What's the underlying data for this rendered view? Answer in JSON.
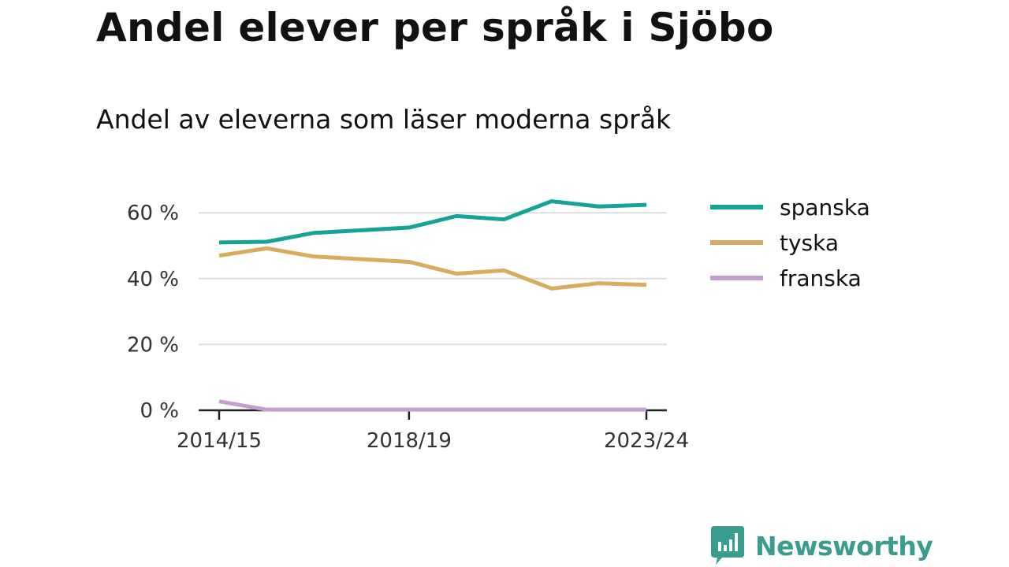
{
  "title": "Andel elever per språk i Sjöbo",
  "subtitle": "Andel av eleverna som läser moderna språk",
  "brand": {
    "name": "Newsworthy",
    "color": "#3a9c8f",
    "icon": "bar-chart-speech-bubble-icon"
  },
  "colors": {
    "gridline": "#dddddd",
    "axis": "#222222"
  },
  "chart_data": {
    "type": "line",
    "title": "Andel av eleverna som läser moderna språk",
    "x": [
      "2014/15",
      "2015/16",
      "2016/17",
      "2017/18",
      "2018/19",
      "2019/20",
      "2020/21",
      "2021/22",
      "2022/23",
      "2023/24"
    ],
    "x_tick_labels": [
      "2014/15",
      "2018/19",
      "2023/24"
    ],
    "ylim": [
      0,
      70
    ],
    "y_ticks": [
      0,
      20,
      40,
      60
    ],
    "y_tick_labels": [
      "0 %",
      "20 %",
      "40 %",
      "60 %"
    ],
    "grid": true,
    "legend_position": "right",
    "series": [
      {
        "name": "spanska",
        "color": "#14a396",
        "values": [
          51,
          51.2,
          53.9,
          54.7,
          55.5,
          59,
          58,
          63.5,
          61.9,
          62.4
        ]
      },
      {
        "name": "tyska",
        "color": "#d6ad5e",
        "values": [
          47,
          49.2,
          46.7,
          45.9,
          45.1,
          41.5,
          42.5,
          37,
          38.6,
          38.1
        ]
      },
      {
        "name": "franska",
        "color": "#c39fd0",
        "values": [
          2.7,
          0.2,
          0.2,
          0.2,
          0.2,
          0.2,
          0.2,
          0.2,
          0.2,
          0.2
        ]
      }
    ]
  }
}
